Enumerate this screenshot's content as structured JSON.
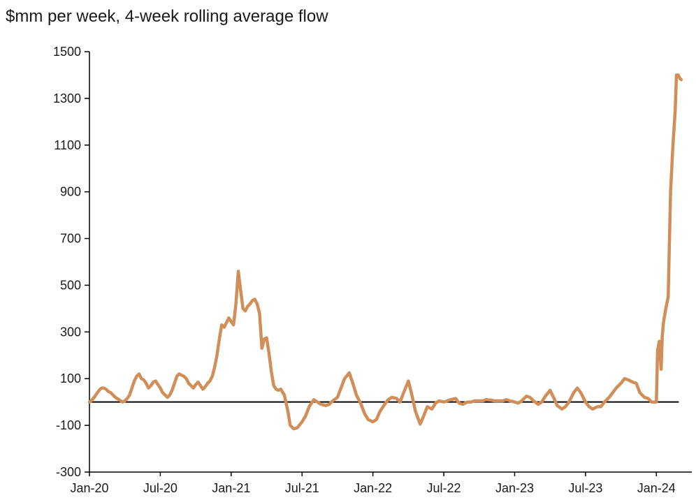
{
  "chart_data": {
    "type": "line",
    "title": "$mm per week, 4-week rolling average flow",
    "xlabel": "",
    "ylabel": "",
    "ylim": [
      -300,
      1500
    ],
    "yticks": [
      -300,
      -100,
      100,
      300,
      500,
      700,
      900,
      1100,
      1300,
      1500
    ],
    "xticks": [
      "Jan-20",
      "Jul-20",
      "Jan-21",
      "Jul-21",
      "Jan-22",
      "Jul-22",
      "Jan-23",
      "Jul-23",
      "Jan-24"
    ],
    "grid": false,
    "legend": "none",
    "series_color": "#D08E58",
    "series": [
      {
        "x": [
          0,
          0.15,
          0.4,
          0.6,
          0.75,
          0.9,
          1.05,
          1.2,
          1.4,
          1.6,
          1.8,
          2.0,
          2.2,
          2.5,
          2.8,
          3.0,
          3.2,
          3.4,
          3.6,
          3.8,
          4.0,
          4.2,
          4.4,
          4.6,
          4.8,
          5.0,
          5.2,
          5.4,
          5.6,
          5.8,
          6.0,
          6.2,
          6.4,
          6.6,
          6.8,
          7.0,
          7.2,
          7.4,
          7.6,
          7.8,
          8.0,
          8.2,
          8.4,
          8.6,
          8.8,
          9.0,
          9.2,
          9.4,
          9.6,
          9.8,
          10.0,
          10.2,
          10.4,
          10.6,
          10.8,
          11.0,
          11.2,
          11.4,
          11.6,
          11.8,
          12.0,
          12.2,
          12.4,
          12.6,
          12.8,
          13.0,
          13.2,
          13.4,
          13.6,
          13.8,
          14.0,
          14.2,
          14.4,
          14.6,
          14.8,
          15.0,
          15.2,
          15.4,
          15.6,
          15.8,
          16.0,
          16.2,
          16.5,
          16.8,
          17.0,
          17.3,
          17.6,
          18.0,
          18.3,
          18.6,
          19.0,
          19.3,
          19.6,
          20.0,
          20.3,
          20.6,
          21.0,
          21.3,
          21.6,
          22.0,
          22.3,
          22.6,
          23.0,
          23.3,
          23.6,
          24.0,
          24.3,
          24.6,
          25.0,
          25.3,
          25.6,
          26.0,
          26.3,
          26.6,
          27.0,
          27.3,
          27.6,
          28.0,
          28.3,
          28.6,
          29.0,
          29.3,
          29.6,
          30.0,
          30.3,
          30.6,
          31.0,
          31.3,
          31.6,
          32.0,
          32.3,
          32.6,
          33.0,
          33.3,
          33.6,
          34.0,
          34.3,
          34.6,
          35.0,
          35.3,
          35.6,
          36.0,
          36.3,
          36.6,
          37.0,
          37.3,
          37.6,
          38.0,
          38.3,
          38.6,
          39.0,
          39.3,
          39.6,
          40.0,
          40.3,
          40.6,
          41.0,
          41.3,
          41.6,
          42.0,
          42.3,
          42.6,
          43.0,
          43.3,
          43.6,
          44.0,
          44.3,
          44.6,
          45.0,
          45.3,
          45.6,
          46.0,
          46.3,
          46.6,
          47.0,
          47.3,
          47.6,
          48.0,
          48.1,
          48.25,
          48.4,
          48.5,
          48.6,
          48.8,
          49.0,
          49.2,
          49.4,
          49.6,
          49.7,
          49.85,
          50.0,
          50.1
        ],
        "y": [
          0,
          5,
          20,
          35,
          45,
          55,
          60,
          60,
          55,
          45,
          40,
          30,
          20,
          10,
          0,
          5,
          15,
          30,
          60,
          90,
          110,
          120,
          100,
          95,
          80,
          60,
          70,
          85,
          90,
          75,
          60,
          40,
          30,
          20,
          30,
          50,
          80,
          110,
          120,
          115,
          110,
          100,
          80,
          70,
          60,
          75,
          85,
          70,
          55,
          65,
          80,
          90,
          110,
          150,
          200,
          270,
          330,
          320,
          340,
          360,
          345,
          330,
          420,
          560,
          480,
          400,
          390,
          410,
          420,
          435,
          440,
          420,
          380,
          230,
          270,
          275,
          210,
          130,
          70,
          55,
          50,
          55,
          30,
          -40,
          -100,
          -115,
          -110,
          -85,
          -60,
          -20,
          10,
          0,
          -10,
          -15,
          -10,
          5,
          20,
          60,
          100,
          125,
          80,
          30,
          -10,
          -50,
          -75,
          -85,
          -75,
          -40,
          -10,
          10,
          20,
          15,
          0,
          40,
          90,
          30,
          -40,
          -95,
          -60,
          -20,
          -30,
          -5,
          5,
          0,
          5,
          10,
          15,
          -5,
          -10,
          0,
          0,
          5,
          5,
          5,
          10,
          8,
          5,
          5,
          5,
          10,
          5,
          0,
          -5,
          5,
          25,
          20,
          5,
          -10,
          0,
          25,
          50,
          20,
          -15,
          -30,
          -20,
          0,
          40,
          60,
          40,
          0,
          -20,
          -30,
          -20,
          -20,
          0,
          20,
          40,
          60,
          80,
          100,
          95,
          85,
          80,
          40,
          20,
          15,
          0,
          0,
          220,
          260,
          140,
          280,
          340,
          400,
          450,
          900,
          1100,
          1250,
          1400,
          1400,
          1385,
          1380
        ]
      }
    ]
  }
}
